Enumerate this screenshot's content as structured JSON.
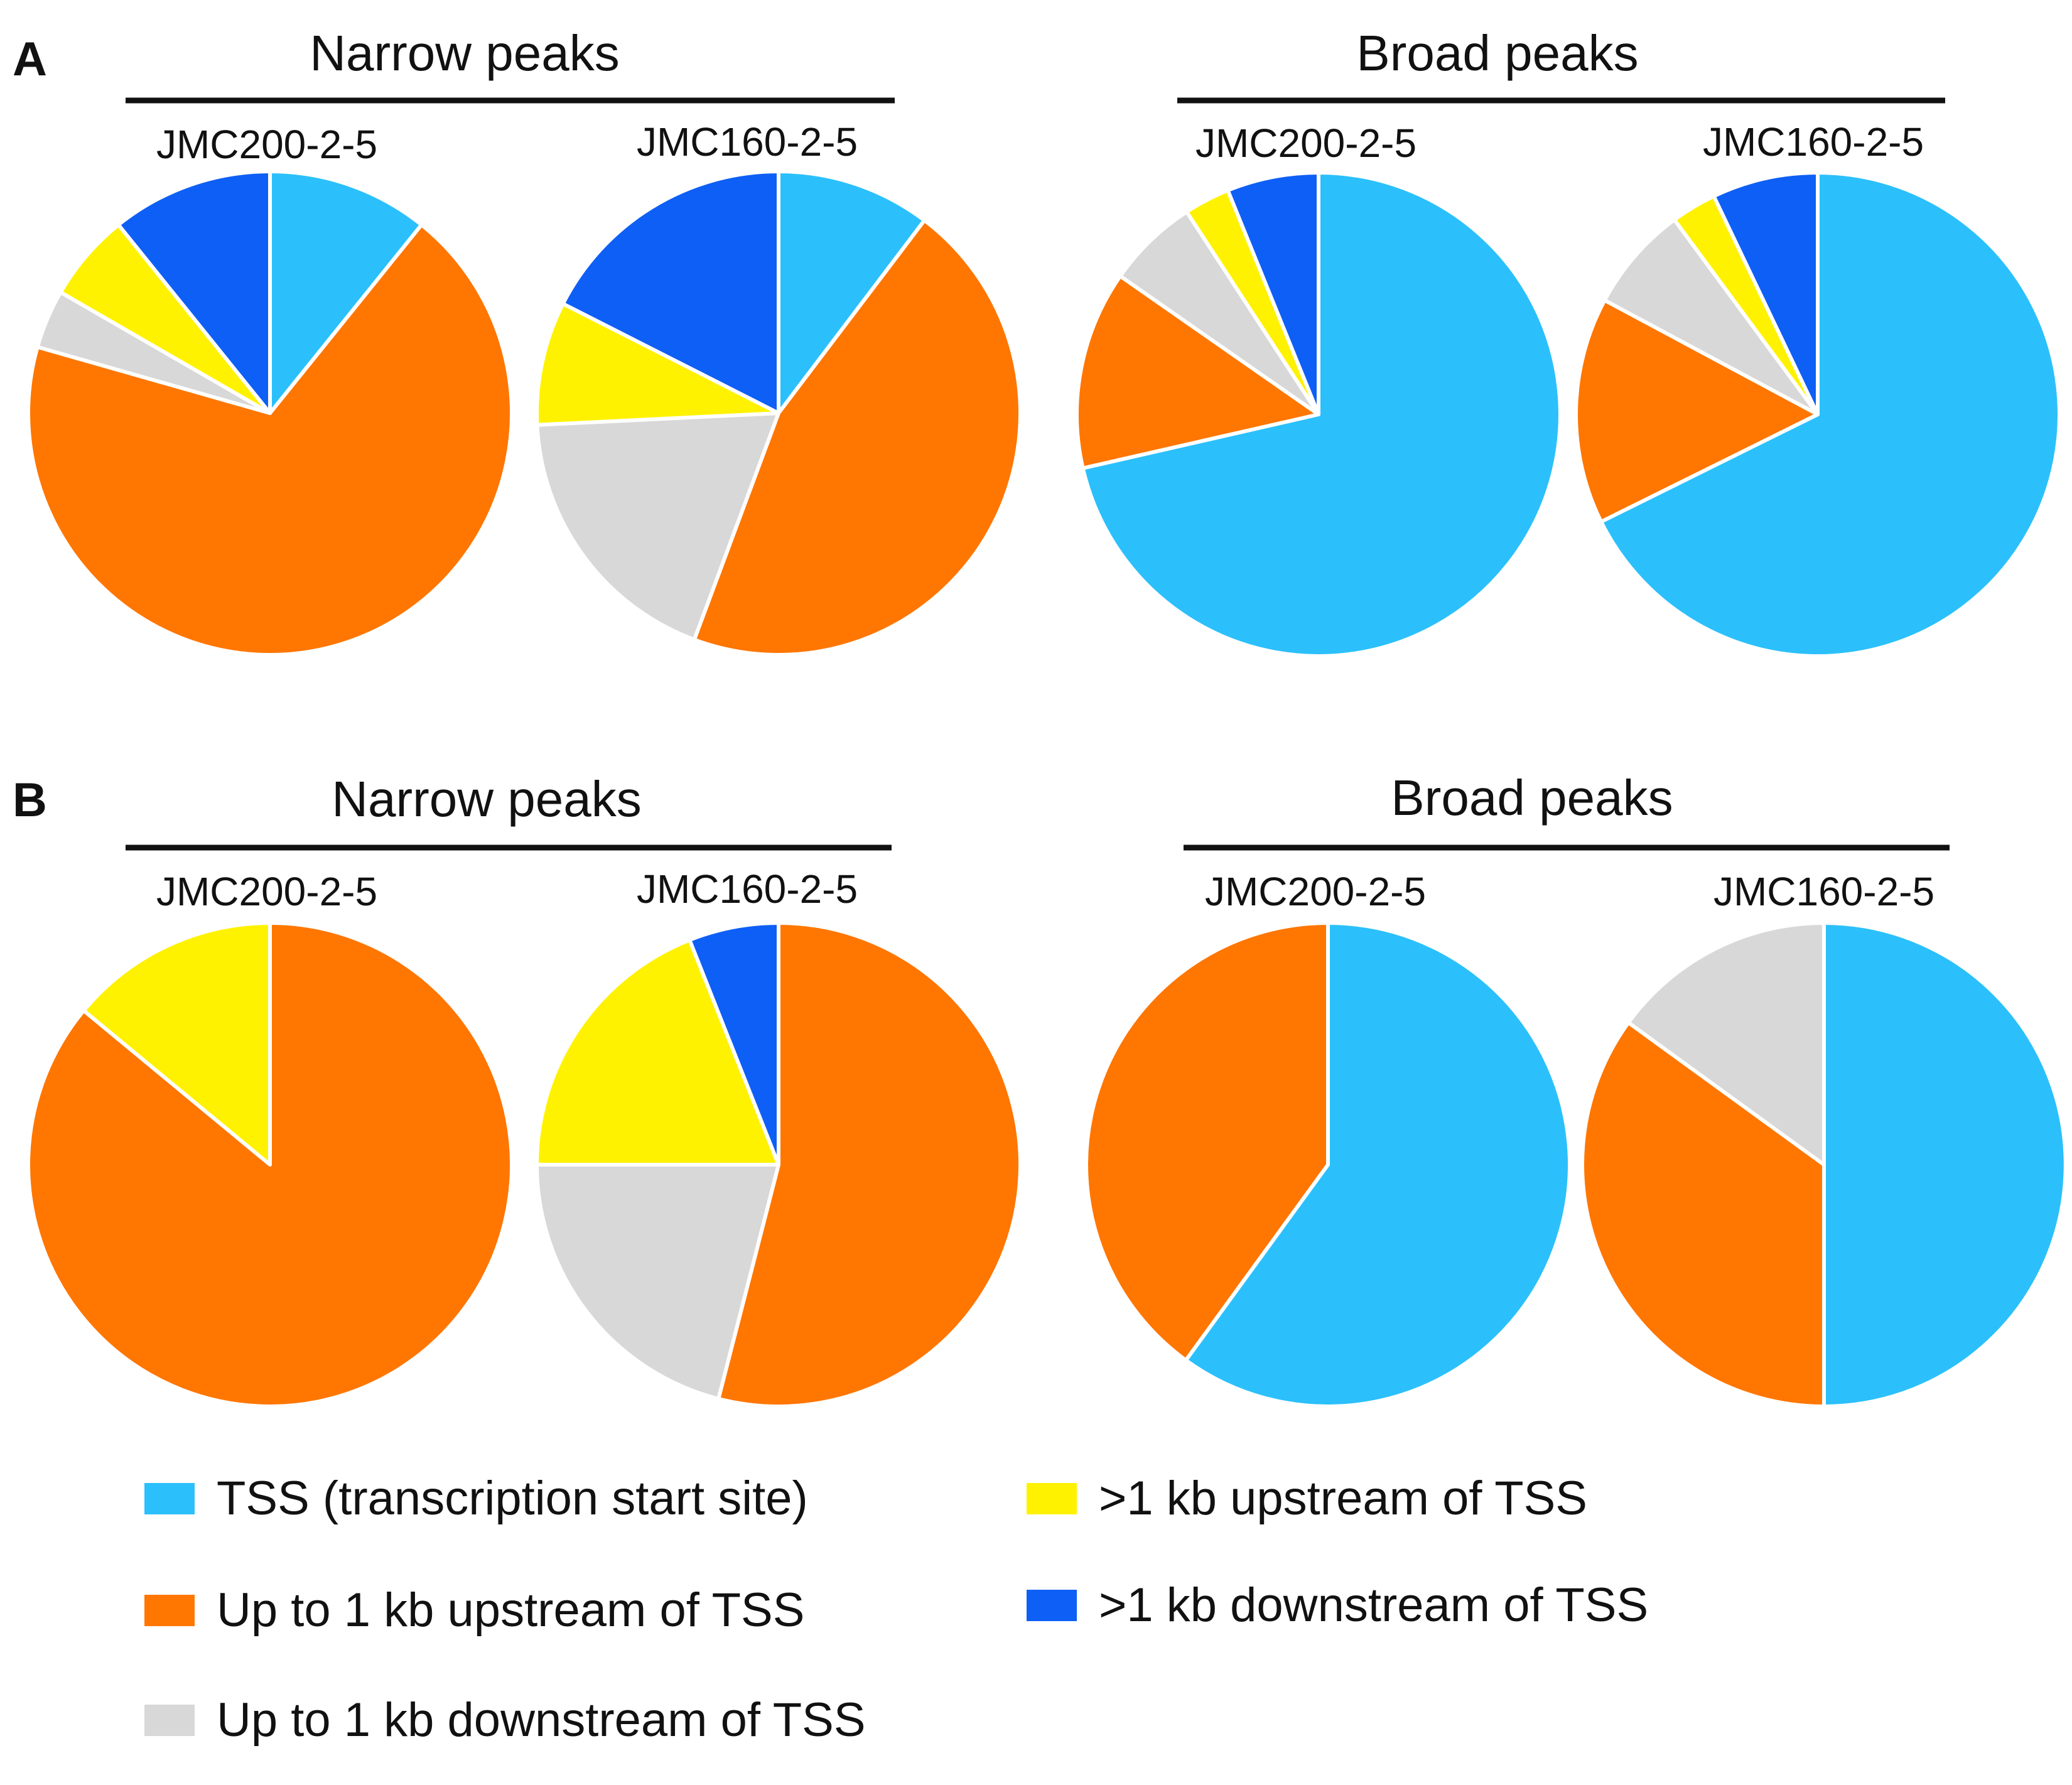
{
  "colors": {
    "tss": "#2BC0FB",
    "up_short": "#FF7600",
    "down_short": "#D8D8D8",
    "up_long": "#FFF200",
    "down_long": "#0E5FF5",
    "slice_border": "#FFFFFF"
  },
  "legend": {
    "items": [
      {
        "key": "tss",
        "label": "TSS (transcription start site)"
      },
      {
        "key": "up_long",
        "label": ">1 kb upstream of TSS"
      },
      {
        "key": "up_short",
        "label": "Up to 1 kb upstream of TSS"
      },
      {
        "key": "down_long",
        "label": ">1 kb downstream of TSS"
      },
      {
        "key": "down_short",
        "label": "Up to 1 kb downstream of TSS"
      }
    ]
  },
  "chart_data": [
    {
      "panel": "A",
      "groups": [
        {
          "title": "Narrow peaks",
          "charts": [
            {
              "type": "pie",
              "title": "JMC200-2-5",
              "slices": [
                {
                  "key": "tss",
                  "label": "TSS (transcription start site)",
                  "value": 11
                },
                {
                  "key": "up_short",
                  "label": "Up to 1 kb upstream of TSS",
                  "value": 70
                },
                {
                  "key": "down_short",
                  "label": "Up to 1 kb downstream of TSS",
                  "value": 4
                },
                {
                  "key": "up_long",
                  "label": ">1 kb upstream of TSS",
                  "value": 6
                },
                {
                  "key": "down_long",
                  "label": ">1 kb downstream of TSS",
                  "value": 11
                }
              ]
            },
            {
              "type": "pie",
              "title": "JMC160-2-5",
              "slices": [
                {
                  "key": "tss",
                  "label": "TSS (transcription start site)",
                  "value": 10
                },
                {
                  "key": "up_short",
                  "label": "Up to 1 kb upstream of TSS",
                  "value": 44
                },
                {
                  "key": "down_short",
                  "label": "Up to 1 kb downstream of TSS",
                  "value": 18
                },
                {
                  "key": "up_long",
                  "label": ">1 kb upstream of TSS",
                  "value": 8
                },
                {
                  "key": "down_long",
                  "label": ">1 kb downstream of TSS",
                  "value": 17
                }
              ]
            }
          ]
        },
        {
          "title": "Broad peaks",
          "charts": [
            {
              "type": "pie",
              "title": "JMC200-2-5",
              "slices": [
                {
                  "key": "tss",
                  "label": "TSS (transcription start site)",
                  "value": 70
                },
                {
                  "key": "up_short",
                  "label": "Up to 1 kb upstream of TSS",
                  "value": 13
                },
                {
                  "key": "down_short",
                  "label": "Up to 1 kb downstream of TSS",
                  "value": 6
                },
                {
                  "key": "up_long",
                  "label": ">1 kb upstream of TSS",
                  "value": 3
                },
                {
                  "key": "down_long",
                  "label": ">1 kb downstream of TSS",
                  "value": 6
                }
              ]
            },
            {
              "type": "pie",
              "title": "JMC160-2-5",
              "slices": [
                {
                  "key": "tss",
                  "label": "TSS (transcription start site)",
                  "value": 67
                },
                {
                  "key": "up_short",
                  "label": "Up to 1 kb upstream of TSS",
                  "value": 15
                },
                {
                  "key": "down_short",
                  "label": "Up to 1 kb downstream of TSS",
                  "value": 7
                },
                {
                  "key": "up_long",
                  "label": ">1 kb upstream of TSS",
                  "value": 3
                },
                {
                  "key": "down_long",
                  "label": ">1 kb downstream of TSS",
                  "value": 7
                }
              ]
            }
          ]
        }
      ]
    },
    {
      "panel": "B",
      "groups": [
        {
          "title": "Narrow peaks",
          "charts": [
            {
              "type": "pie",
              "title": "JMC200-2-5",
              "slices": [
                {
                  "key": "up_short",
                  "label": "Up to 1 kb upstream of TSS",
                  "value": 86
                },
                {
                  "key": "up_long",
                  "label": ">1 kb upstream of TSS",
                  "value": 14
                }
              ]
            },
            {
              "type": "pie",
              "title": "JMC160-2-5",
              "slices": [
                {
                  "key": "up_short",
                  "label": "Up to 1 kb upstream of TSS",
                  "value": 54
                },
                {
                  "key": "down_short",
                  "label": "Up to 1 kb downstream of TSS",
                  "value": 21
                },
                {
                  "key": "up_long",
                  "label": ">1 kb upstream of TSS",
                  "value": 19
                },
                {
                  "key": "down_long",
                  "label": ">1 kb downstream of TSS",
                  "value": 6
                }
              ]
            }
          ]
        },
        {
          "title": "Broad peaks",
          "charts": [
            {
              "type": "pie",
              "title": "JMC200-2-5",
              "slices": [
                {
                  "key": "tss",
                  "label": "TSS (transcription start site)",
                  "value": 60
                },
                {
                  "key": "up_short",
                  "label": "Up to 1 kb upstream of TSS",
                  "value": 40
                }
              ]
            },
            {
              "type": "pie",
              "title": "JMC160-2-5",
              "slices": [
                {
                  "key": "tss",
                  "label": "TSS (transcription start site)",
                  "value": 50
                },
                {
                  "key": "up_short",
                  "label": "Up to 1 kb upstream of TSS",
                  "value": 35
                },
                {
                  "key": "down_short",
                  "label": "Up to 1 kb downstream of TSS",
                  "value": 15
                }
              ]
            }
          ]
        }
      ]
    }
  ]
}
